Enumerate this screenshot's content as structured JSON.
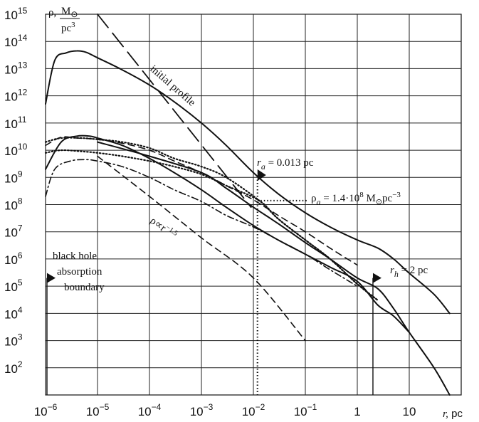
{
  "chart_data": {
    "type": "line",
    "x_scale": "log",
    "y_scale": "log",
    "xlim": [
      1e-06,
      100
    ],
    "ylim": [
      10,
      1000000000000000.0
    ],
    "grid": true,
    "ylabel": "ρ, M⊙ / pc³",
    "xlabel": "r, pc",
    "x_ticks": [
      {
        "v": 1e-06,
        "base": "10",
        "exp": "−6"
      },
      {
        "v": 1e-05,
        "base": "10",
        "exp": "−5"
      },
      {
        "v": 0.0001,
        "base": "10",
        "exp": "−4"
      },
      {
        "v": 0.001,
        "base": "10",
        "exp": "−3"
      },
      {
        "v": 0.01,
        "base": "10",
        "exp": "−2"
      },
      {
        "v": 0.1,
        "base": "10",
        "exp": "−1"
      },
      {
        "v": 1,
        "base": "1",
        "exp": ""
      },
      {
        "v": 10,
        "base": "10",
        "exp": ""
      }
    ],
    "y_ticks": [
      {
        "v": 1000000000000000.0,
        "exp": "15"
      },
      {
        "v": 100000000000000.0,
        "exp": "14"
      },
      {
        "v": 10000000000000.0,
        "exp": "13"
      },
      {
        "v": 1000000000000.0,
        "exp": "12"
      },
      {
        "v": 100000000000.0,
        "exp": "11"
      },
      {
        "v": 10000000000.0,
        "exp": "10"
      },
      {
        "v": 1000000000.0,
        "exp": "9"
      },
      {
        "v": 100000000.0,
        "exp": "8"
      },
      {
        "v": 10000000.0,
        "exp": "7"
      },
      {
        "v": 1000000.0,
        "exp": "6"
      },
      {
        "v": 100000.0,
        "exp": "5"
      },
      {
        "v": 10000.0,
        "exp": "4"
      },
      {
        "v": 1000.0,
        "exp": "3"
      },
      {
        "v": 100.0,
        "exp": "2"
      }
    ],
    "series": [
      {
        "style": "long-dash",
        "x": [
          1e-05,
          0.009
        ],
        "y": [
          1000000000000000.0,
          80000000.0
        ]
      },
      {
        "style": "solid",
        "x": [
          1e-06,
          1.5e-06,
          2.5e-06,
          4e-06,
          6e-06,
          1e-05,
          3e-05,
          0.0001,
          0.0003,
          0.001,
          0.003,
          0.01,
          0.03,
          0.1,
          0.3,
          1,
          2.5,
          5,
          10,
          30,
          60
        ],
        "y": [
          500000000000.0,
          20000000000000.0,
          38000000000000.0,
          45000000000000.0,
          40000000000000.0,
          25000000000000.0,
          9000000000000.0,
          2500000000000.0,
          600000000000.0,
          100000000000.0,
          15000000000.0,
          1500000000.0,
          250000000.0,
          50000000.0,
          15000000.0,
          5000000.0,
          2500000.0,
          1000000.0,
          300000.0,
          50000.0,
          10000.0
        ]
      },
      {
        "style": "solid",
        "x": [
          1e-06,
          2e-06,
          4e-06,
          7e-06,
          1e-05,
          3e-05,
          0.0001,
          0.0003,
          0.001,
          0.003,
          0.01,
          0.03,
          0.1,
          0.3,
          1,
          2.5,
          5,
          10
        ],
        "y": [
          2000000000.0,
          20000000000.0,
          33000000000.0,
          33000000000.0,
          28000000000.0,
          15000000000.0,
          5000000000.0,
          1500000000.0,
          350000000.0,
          80000000.0,
          17000000.0,
          5000000.0,
          1500000.0,
          500000.0,
          150000.0,
          20000.0,
          8000.0,
          2000.0
        ]
      },
      {
        "style": "solid",
        "x": [
          1e-05,
          0.0001,
          0.001,
          0.003,
          0.01,
          0.03,
          0.1,
          0.3,
          1,
          2.5,
          5,
          10,
          30,
          60
        ],
        "y": [
          20000000000.0,
          6000000000.0,
          1500000000.0,
          400000000.0,
          80000000.0,
          20000000.0,
          4000000.0,
          1000000.0,
          200000.0,
          80000.0,
          15000.0,
          2000.0,
          100.0,
          10
        ]
      },
      {
        "style": "dash-dot",
        "x": [
          1e-06,
          1.5e-06,
          3e-06,
          6e-06,
          1e-05,
          3e-05,
          0.0001,
          0.0003,
          0.001,
          0.003,
          0.01,
          0.03,
          0.1,
          0.3,
          1
        ],
        "y": [
          200000000.0,
          2000000000.0,
          4000000000.0,
          4500000000.0,
          4000000000.0,
          2500000000.0,
          1000000000.0,
          350000000.0,
          130000000.0,
          40000000.0,
          15000000.0,
          5000000.0,
          1500000.0,
          400000.0,
          100000.0
        ]
      },
      {
        "style": "dash",
        "x": [
          1e-06,
          2e-06,
          4e-06,
          1e-05,
          3e-05,
          0.0001,
          0.0003,
          0.001,
          0.003,
          0.01,
          0.03,
          0.1,
          0.3,
          1
        ],
        "y": [
          15000000000.0,
          30000000000.0,
          28000000000.0,
          25000000000.0,
          18000000000.0,
          10000000000.0,
          4000000000.0,
          1500000000.0,
          500000000.0,
          150000000.0,
          40000000.0,
          10000000.0,
          2500000.0,
          600000.0
        ]
      },
      {
        "style": "dot",
        "x": [
          1e-06,
          2e-06,
          5e-06,
          1e-05,
          3e-05,
          0.0001,
          0.0003,
          0.001,
          0.003,
          0.013,
          0.03,
          0.1,
          0.3,
          1,
          2.5
        ],
        "y": [
          20000000000.0,
          28000000000.0,
          28000000000.0,
          25000000000.0,
          20000000000.0,
          12000000000.0,
          5000000000.0,
          2500000000.0,
          1000000000.0,
          140000000.0,
          30000000.0,
          5000000.0,
          1000000.0,
          120000.0,
          30000.0
        ]
      },
      {
        "style": "dot",
        "x": [
          1e-06,
          2e-06,
          5e-06,
          1e-05,
          3e-05,
          0.0001,
          0.0003,
          0.001,
          0.003,
          0.013,
          0.03,
          0.1,
          0.3,
          1,
          2.5
        ],
        "y": [
          8000000000.0,
          10000000000.0,
          9000000000.0,
          8000000000.0,
          6000000000.0,
          4000000000.0,
          2500000000.0,
          1300000000.0,
          500000000.0,
          140000000.0,
          30000000.0,
          5000000.0,
          1000000.0,
          120000.0,
          30000.0
        ]
      },
      {
        "style": "dash",
        "x": [
          1e-05,
          0.0001,
          0.001,
          0.01,
          0.1
        ],
        "y": [
          6000000000.0,
          200000000.0,
          6000000.0,
          200000.0,
          1000.0
        ]
      }
    ],
    "annotations": {
      "initial_profile": "initial profile",
      "r_a": "r",
      "r_a_sub": "a",
      "r_a_val": " = 0.013 pc",
      "rho_a": "ρ",
      "rho_a_sub": "a",
      "rho_a_val": " = 1.4·10",
      "rho_a_exp": "8",
      "rho_a_unit": " M",
      "rho_a_unit_sub": "⊙",
      "rho_a_unit2": "pc",
      "rho_a_unit2_exp": "−3",
      "slope": "ρ∝r",
      "slope_exp": "−1.5",
      "r_h": "r",
      "r_h_sub": "h",
      "r_h_val": " = 2 pc",
      "bh_line1": "black hole",
      "bh_line2": "absorption",
      "bh_line3": "boundary",
      "ylabel_rho": "ρ,",
      "ylabel_num": "M",
      "ylabel_sun": "⊙",
      "ylabel_den": "pc",
      "ylabel_den_exp": "3",
      "xlabel_r": "r,",
      "xlabel_unit": " pc"
    },
    "markers": {
      "r_a_x": 0.012,
      "rho_a_y": 140000000.0,
      "r_h_x": 2,
      "bh_x": 1e-06,
      "bh_y": 200000.0,
      "rh_y": 200000.0
    }
  }
}
